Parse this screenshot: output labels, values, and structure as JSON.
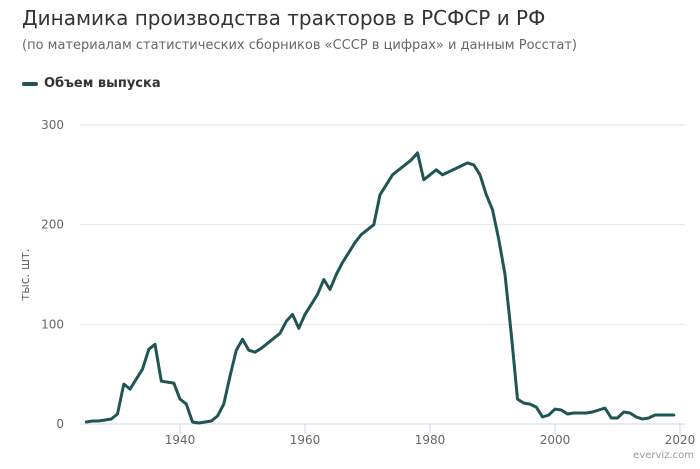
{
  "chart_data": {
    "type": "line",
    "title": "Динамика производства тракторов в РСФСР и РФ",
    "subtitle": "(по материалам статистических сборников «СССР в цифрах» и данным Росстат)",
    "xlabel": "",
    "ylabel": "тыс. шт.",
    "xlim": [
      1924,
      2020
    ],
    "ylim": [
      0,
      300
    ],
    "x_ticks": [
      1940,
      1960,
      1980,
      2000,
      2020
    ],
    "y_ticks": [
      0,
      100,
      200,
      300
    ],
    "grid": "horizontal",
    "legend_position": "top-left",
    "series": [
      {
        "name": "Объем выпуска",
        "color": "#1f5555",
        "x": [
          1925,
          1926,
          1927,
          1928,
          1929,
          1930,
          1931,
          1932,
          1933,
          1934,
          1935,
          1936,
          1937,
          1938,
          1939,
          1940,
          1941,
          1942,
          1943,
          1944,
          1945,
          1946,
          1947,
          1948,
          1949,
          1950,
          1951,
          1952,
          1953,
          1954,
          1955,
          1956,
          1957,
          1958,
          1959,
          1960,
          1961,
          1962,
          1963,
          1964,
          1965,
          1966,
          1967,
          1968,
          1969,
          1970,
          1971,
          1972,
          1973,
          1974,
          1975,
          1976,
          1977,
          1978,
          1979,
          1980,
          1981,
          1982,
          1983,
          1984,
          1985,
          1986,
          1987,
          1988,
          1989,
          1990,
          1991,
          1992,
          1993,
          1994,
          1995,
          1996,
          1997,
          1998,
          1999,
          2000,
          2001,
          2002,
          2003,
          2004,
          2005,
          2006,
          2007,
          2008,
          2009,
          2010,
          2011,
          2012,
          2013,
          2014,
          2015,
          2016,
          2017,
          2018,
          2019
        ],
        "values": [
          2,
          3,
          3,
          4,
          5,
          10,
          40,
          35,
          45,
          55,
          75,
          80,
          43,
          42,
          41,
          25,
          20,
          2,
          1,
          2,
          3,
          8,
          20,
          48,
          74,
          85,
          74,
          72,
          76,
          81,
          86,
          91,
          103,
          110,
          96,
          110,
          120,
          130,
          145,
          135,
          150,
          162,
          172,
          182,
          190,
          195,
          200,
          230,
          240,
          250,
          255,
          260,
          265,
          272,
          245,
          250,
          255,
          250,
          253,
          256,
          259,
          262,
          260,
          250,
          230,
          215,
          185,
          150,
          90,
          25,
          21,
          20,
          17,
          7,
          9,
          15,
          14,
          10,
          11,
          11,
          11,
          12,
          14,
          16,
          6,
          6,
          12,
          11,
          7,
          5,
          6,
          9,
          9,
          9,
          9
        ]
      }
    ]
  },
  "credit": "everviz.com"
}
